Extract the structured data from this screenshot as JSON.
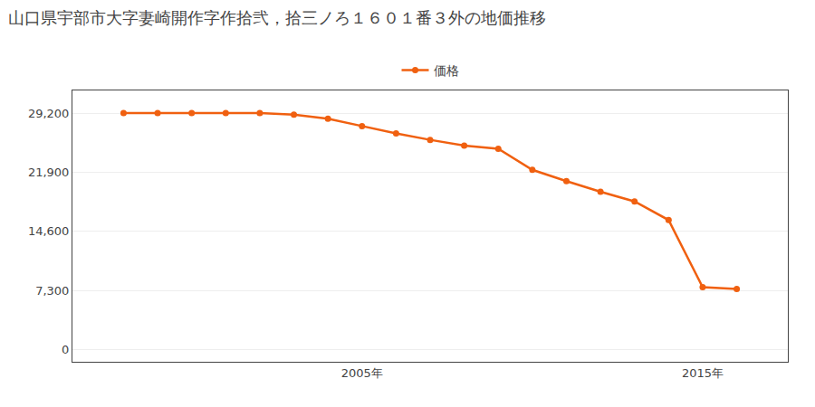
{
  "chart_data": {
    "type": "line",
    "title": "山口県宇部市大字妻崎開作字作拾弐，拾三ノろ１６０１番３外の地価推移",
    "x": [
      1998,
      1999,
      2000,
      2001,
      2002,
      2003,
      2004,
      2005,
      2006,
      2007,
      2008,
      2009,
      2010,
      2011,
      2012,
      2013,
      2014,
      2015,
      2016
    ],
    "series": [
      {
        "name": "価格",
        "color": "#f06010",
        "values": [
          29200,
          29200,
          29200,
          29200,
          29200,
          29000,
          28500,
          27600,
          26700,
          25900,
          25200,
          24800,
          22200,
          20800,
          19500,
          18300,
          16000,
          7700,
          7500
        ]
      }
    ],
    "xlim": [
      1996.5,
      2017.5
    ],
    "xticks": [
      {
        "value": 2005,
        "label": "2005年"
      },
      {
        "value": 2015,
        "label": "2015年"
      }
    ],
    "ylim": [
      -1500,
      32000
    ],
    "yticks": [
      0,
      {
        "value": 7300,
        "label": "7,300"
      },
      {
        "value": 14600,
        "label": "14,600"
      },
      {
        "value": 21900,
        "label": "21,900"
      },
      {
        "value": 29200,
        "label": "29,200"
      }
    ],
    "grid": "y",
    "legend": "top",
    "marker": "circle"
  }
}
